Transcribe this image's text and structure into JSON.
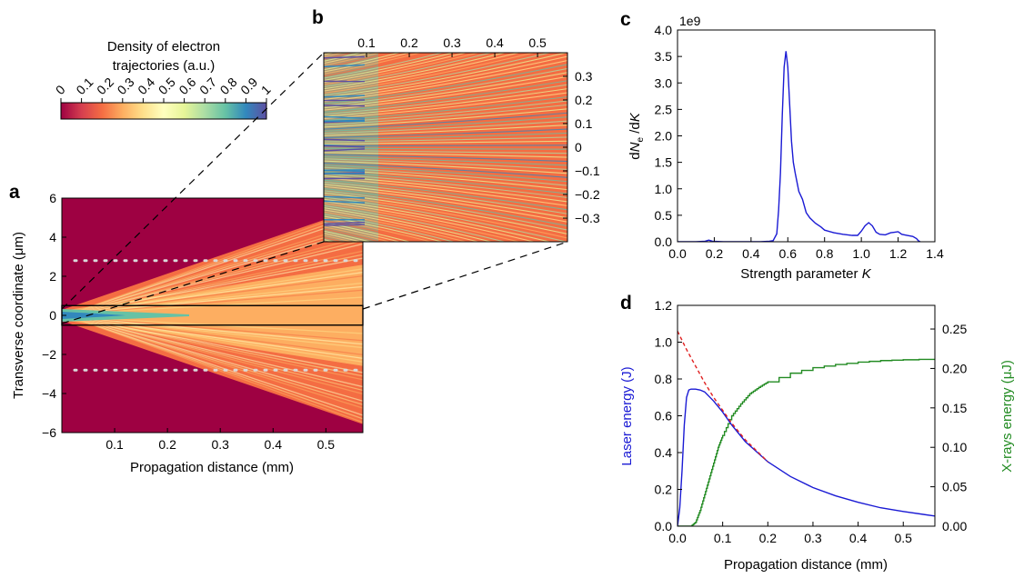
{
  "figure": {
    "panel_labels": [
      "a",
      "b",
      "c",
      "d"
    ]
  },
  "colorbar": {
    "title_line1": "Density of electron",
    "title_line2": "trajectories (a.u.)",
    "ticks": [
      "0",
      "0.1",
      "0.2",
      "0.3",
      "0.4",
      "0.5",
      "0.6",
      "0.7",
      "0.8",
      "0.9",
      "1"
    ],
    "colormap": "Spectral",
    "colors": [
      "#9e0142",
      "#d53e4f",
      "#f46d43",
      "#fdae61",
      "#fee08b",
      "#ffffbf",
      "#e6f598",
      "#abdda4",
      "#66c2a5",
      "#3288bd",
      "#5e4fa2"
    ]
  },
  "chart_data": [
    {
      "panel": "a",
      "type": "heatmap",
      "xlabel": "Propagation distance (mm)",
      "ylabel": "Transverse coordinate (μm)",
      "xlim": [
        0.0,
        0.57
      ],
      "ylim": [
        -6,
        6
      ],
      "xticks": [
        "0.1",
        "0.2",
        "0.3",
        "0.4",
        "0.5"
      ],
      "yticks": [
        "6",
        "4",
        "2",
        "0",
        "−2",
        "−4",
        "−6"
      ],
      "dotted_lines_y": [
        2.8,
        -2.8
      ],
      "zoom_box_y": [
        -0.5,
        0.5
      ]
    },
    {
      "panel": "b",
      "type": "heatmap",
      "xlim": [
        0.0,
        0.57
      ],
      "ylim": [
        -0.4,
        0.4
      ],
      "xticks": [
        "0.1",
        "0.2",
        "0.3",
        "0.4",
        "0.5"
      ],
      "yticks": [
        "0.3",
        "0.2",
        "0.1",
        "0",
        "−0.1",
        "−0.2",
        "−0.3"
      ]
    },
    {
      "panel": "c",
      "type": "line",
      "xlabel_main": "Strength parameter ",
      "xlabel_var": "K",
      "ylabel": "dN_e/dK",
      "multiplier": "1e9",
      "xlim": [
        0.0,
        1.4
      ],
      "ylim": [
        0.0,
        4.0
      ],
      "xticks": [
        "0.0",
        "0.2",
        "0.4",
        "0.6",
        "0.8",
        "1.0",
        "1.2",
        "1.4"
      ],
      "yticks": [
        "0.0",
        "0.5",
        "1.0",
        "1.5",
        "2.0",
        "2.5",
        "3.0",
        "3.5",
        "4.0"
      ],
      "series": [
        {
          "color": "#1a1ad4",
          "x": [
            0.0,
            0.1,
            0.15,
            0.17,
            0.19,
            0.25,
            0.35,
            0.45,
            0.5,
            0.52,
            0.54,
            0.55,
            0.56,
            0.57,
            0.58,
            0.59,
            0.6,
            0.61,
            0.62,
            0.63,
            0.64,
            0.66,
            0.68,
            0.7,
            0.72,
            0.75,
            0.78,
            0.8,
            0.85,
            0.9,
            0.95,
            0.98,
            1.0,
            1.02,
            1.04,
            1.06,
            1.08,
            1.1,
            1.13,
            1.16,
            1.18,
            1.2,
            1.22,
            1.25,
            1.28,
            1.3,
            1.31,
            1.32
          ],
          "y": [
            0.0,
            0.0,
            0.01,
            0.03,
            0.01,
            0.0,
            0.0,
            0.0,
            0.01,
            0.02,
            0.15,
            0.6,
            1.3,
            2.4,
            3.3,
            3.6,
            3.3,
            2.6,
            1.9,
            1.5,
            1.3,
            0.95,
            0.8,
            0.55,
            0.45,
            0.35,
            0.28,
            0.22,
            0.17,
            0.14,
            0.12,
            0.12,
            0.2,
            0.3,
            0.36,
            0.3,
            0.18,
            0.14,
            0.13,
            0.17,
            0.18,
            0.19,
            0.14,
            0.12,
            0.1,
            0.06,
            0.02,
            0.0
          ]
        }
      ]
    },
    {
      "panel": "d",
      "type": "line",
      "xlabel": "Propagation distance (mm)",
      "ylabel_left": "Laser energy (J)",
      "ylabel_right": "X-rays energy (μJ)",
      "xlim": [
        0.0,
        0.57
      ],
      "ylim_left": [
        0.0,
        1.2
      ],
      "ylim_right": [
        0.0,
        0.28
      ],
      "xticks": [
        "0.0",
        "0.1",
        "0.2",
        "0.3",
        "0.4",
        "0.5"
      ],
      "yticks_left": [
        "0.0",
        "0.2",
        "0.4",
        "0.6",
        "0.8",
        "1.0",
        "1.2"
      ],
      "yticks_right": [
        "0.00",
        "0.05",
        "0.10",
        "0.15",
        "0.20",
        "0.25"
      ],
      "series": [
        {
          "axis": "left",
          "color": "#1a1ad4",
          "style": "solid",
          "x": [
            0.0,
            0.005,
            0.01,
            0.015,
            0.02,
            0.025,
            0.03,
            0.04,
            0.05,
            0.06,
            0.08,
            0.1,
            0.12,
            0.15,
            0.2,
            0.25,
            0.3,
            0.35,
            0.4,
            0.45,
            0.5,
            0.57
          ],
          "y": [
            0.0,
            0.1,
            0.3,
            0.55,
            0.7,
            0.74,
            0.745,
            0.745,
            0.74,
            0.73,
            0.68,
            0.62,
            0.55,
            0.46,
            0.35,
            0.27,
            0.21,
            0.165,
            0.13,
            0.1,
            0.08,
            0.055
          ]
        },
        {
          "axis": "left",
          "color": "#e02020",
          "style": "dashed",
          "x": [
            0.0,
            0.02,
            0.04,
            0.06,
            0.08,
            0.1,
            0.12,
            0.15,
            0.2
          ],
          "y": [
            1.06,
            0.96,
            0.87,
            0.78,
            0.7,
            0.63,
            0.56,
            0.47,
            0.35
          ]
        },
        {
          "axis": "right",
          "color": "#228b22",
          "style": "solid",
          "x": [
            0.0,
            0.03,
            0.04,
            0.05,
            0.06,
            0.07,
            0.08,
            0.09,
            0.1,
            0.12,
            0.14,
            0.16,
            0.18,
            0.2,
            0.25,
            0.3,
            0.35,
            0.4,
            0.45,
            0.5,
            0.57
          ],
          "y": [
            0.0,
            0.0,
            0.005,
            0.02,
            0.04,
            0.06,
            0.08,
            0.1,
            0.115,
            0.14,
            0.155,
            0.168,
            0.176,
            0.183,
            0.194,
            0.201,
            0.205,
            0.208,
            0.21,
            0.211,
            0.212
          ]
        }
      ]
    }
  ]
}
